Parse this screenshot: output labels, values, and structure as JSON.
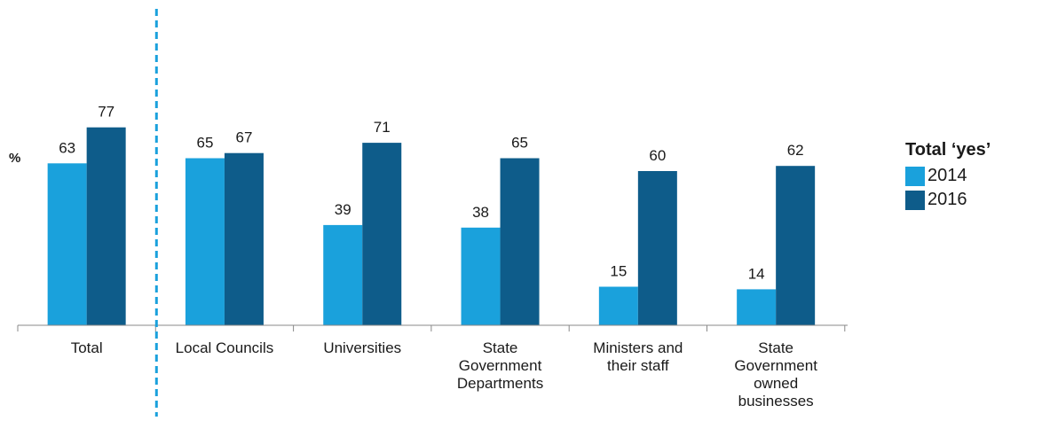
{
  "chart_data": {
    "type": "bar",
    "ylabel": "%",
    "categories": [
      [
        "Total"
      ],
      [
        "Local Councils"
      ],
      [
        "Universities"
      ],
      [
        "State",
        "Government",
        "Departments"
      ],
      [
        "Ministers and",
        "their staff"
      ],
      [
        "State",
        "Government",
        "owned",
        "businesses"
      ]
    ],
    "legend_title": "Total ‘yes’",
    "series": [
      {
        "name": "2014",
        "color": "#1aa1dc",
        "values": [
          63,
          65,
          39,
          38,
          15,
          14
        ]
      },
      {
        "name": "2016",
        "color": "#0e5c8a",
        "values": [
          77,
          67,
          71,
          65,
          60,
          62
        ]
      }
    ],
    "ylim": [
      0,
      100
    ],
    "grid": false,
    "legend_position": "right",
    "divider_after_category": 0,
    "divider_color": "#1aa1dc"
  }
}
